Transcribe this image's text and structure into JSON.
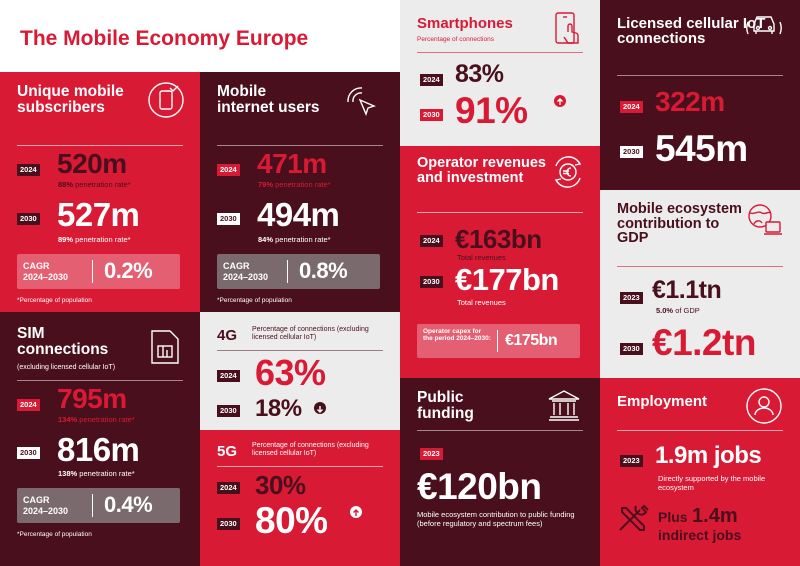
{
  "title": "The Mobile Economy Europe",
  "colors": {
    "red": "#d91a35",
    "dark": "#4a0f1c",
    "light": "#ececec"
  },
  "unique": {
    "heading": "Unique mobile subscribers",
    "icon": "phone-check-icon",
    "y1": "2024",
    "v1": "520m",
    "r1_bold": "88%",
    "r1_rest": " penetration rate*",
    "y2": "2030",
    "v2": "527m",
    "r2_bold": "89%",
    "r2_rest": " penetration rate*",
    "cagr_label": "CAGR 2024–2030",
    "cagr_value": "0.2%",
    "footnote": "*Percentage of population"
  },
  "internet": {
    "heading": "Mobile internet users",
    "icon": "cursor-click-icon",
    "y1": "2024",
    "v1": "471m",
    "r1_bold": "79%",
    "r1_rest": " penetration rate*",
    "y2": "2030",
    "v2": "494m",
    "r2_bold": "84%",
    "r2_rest": " penetration rate*",
    "cagr_label": "CAGR 2024–2030",
    "cagr_value": "0.8%",
    "footnote": "*Percentage of population"
  },
  "sim": {
    "heading": "SIM connections",
    "sub": "(excluding licensed cellular IoT)",
    "icon": "sim-card-icon",
    "y1": "2024",
    "v1": "795m",
    "r1_bold": "134%",
    "r1_rest": " penetration rate*",
    "y2": "2030",
    "v2": "816m",
    "r2_bold": "138%",
    "r2_rest": " penetration rate*",
    "cagr_label": "CAGR 2024–2030",
    "cagr_value": "0.4%",
    "footnote": "*Percentage of population"
  },
  "g4": {
    "heading": "4G",
    "sub": "Percentage of connections (excluding licensed cellular IoT)",
    "y1": "2024",
    "v1": "63%",
    "y2": "2030",
    "v2": "18%"
  },
  "g5": {
    "heading": "5G",
    "sub": "Percentage of connections (excluding licensed cellular IoT)",
    "y1": "2024",
    "v1": "30%",
    "y2": "2030",
    "v2": "80%"
  },
  "smart": {
    "heading": "Smartphones",
    "sub": "Percentage of connections",
    "icon": "smartphone-tap-icon",
    "y1": "2024",
    "v1": "83%",
    "y2": "2030",
    "v2": "91%"
  },
  "operator": {
    "heading": "Operator revenues and investment",
    "icon": "euro-cycle-icon",
    "y1": "2024",
    "v1": "€163bn",
    "s1": "Total revenues",
    "y2": "2030",
    "v2": "€177bn",
    "s2": "Total revenues",
    "capex_label": "Operator capex for the period 2024–2030:",
    "capex_value": "€175bn"
  },
  "public": {
    "heading": "Public funding",
    "icon": "government-building-icon",
    "y": "2023",
    "v": "€120bn",
    "desc": "Mobile ecosystem contribution to public funding (before regulatory and spectrum fees)"
  },
  "iot": {
    "heading": "Licensed cellular IoT connections",
    "icon": "connected-car-icon",
    "y1": "2024",
    "v1": "322m",
    "y2": "2030",
    "v2": "545m"
  },
  "gdp": {
    "heading": "Mobile ecosystem contribution to GDP",
    "icon": "globe-devices-icon",
    "y1": "2023",
    "v1": "€1.1tn",
    "s1_bold": "5.0%",
    "s1_rest": " of GDP",
    "y2": "2030",
    "v2": "€1.2tn"
  },
  "employment": {
    "heading": "Employment",
    "icon": "person-icon",
    "y": "2023",
    "v": "1.9m jobs",
    "s": "Directly supported by the mobile ecosystem",
    "plus": "Plus",
    "indirect_value": "1.4m",
    "indirect_label": "indirect jobs",
    "icon2": "tools-icon"
  }
}
